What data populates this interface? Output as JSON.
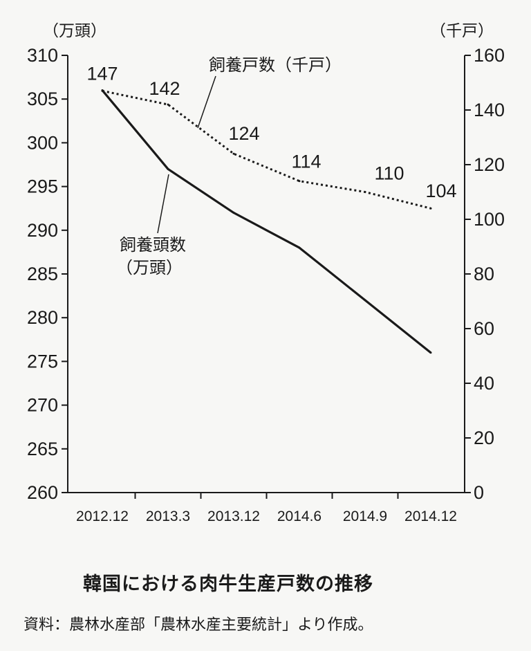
{
  "chart_data": {
    "type": "line",
    "categories": [
      "2012.12",
      "2013.3",
      "2013.12",
      "2014.6",
      "2014.9",
      "2014.12"
    ],
    "left_axis": {
      "unit": "（万頭）",
      "ylim": [
        260,
        310
      ],
      "ticks": [
        "260",
        "265",
        "270",
        "275",
        "280",
        "285",
        "290",
        "295",
        "300",
        "305",
        "310"
      ]
    },
    "right_axis": {
      "unit": "（千戸）",
      "ylim": [
        0,
        160
      ],
      "ticks": [
        "0",
        "20",
        "40",
        "60",
        "80",
        "100",
        "120",
        "140",
        "160"
      ]
    },
    "series": [
      {
        "name": "飼養頭数（万頭）",
        "axis": "left",
        "style": "solid",
        "color": "#1a1a1a",
        "values": [
          306,
          297,
          292,
          288,
          282,
          276
        ]
      },
      {
        "name": "飼養戸数（千戸）",
        "axis": "right",
        "style": "dotted",
        "color": "#1a1a1a",
        "values": [
          147,
          142,
          124,
          114,
          110,
          104
        ],
        "data_labels": [
          "147",
          "142",
          "124",
          "114",
          "110",
          "104"
        ]
      }
    ],
    "annotations": {
      "households": "飼養戸数（千戸）",
      "heads_line1": "飼養頭数",
      "heads_line2": "（万頭）"
    },
    "grid": false
  },
  "caption": "韓国における肉牛生産戸数の推移",
  "source": "資料：農林水産部「農林水産主要統計」より作成。"
}
